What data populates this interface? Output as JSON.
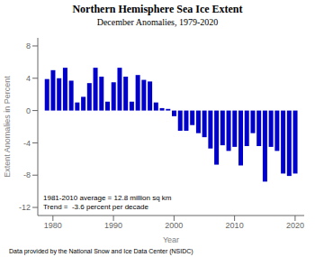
{
  "chart_data": {
    "type": "bar",
    "title": "Northern Hemisphere Sea Ice Extent",
    "subtitle": "December Anomalies, 1979-2020",
    "xlabel": "Year",
    "ylabel": "Extent Anomalies in Percent",
    "annotations": [
      "1981-2010 average = 12.8 million sq km",
      "Trend =  -3.6 percent per decade"
    ],
    "footer": "Data provided by the National Snow and Ice Data Center (NSIDC)",
    "x": [
      1979,
      1980,
      1981,
      1982,
      1983,
      1984,
      1985,
      1986,
      1987,
      1988,
      1989,
      1990,
      1991,
      1992,
      1993,
      1994,
      1995,
      1996,
      1997,
      1998,
      1999,
      2000,
      2001,
      2002,
      2003,
      2004,
      2005,
      2006,
      2007,
      2008,
      2009,
      2010,
      2011,
      2012,
      2013,
      2014,
      2015,
      2016,
      2017,
      2018,
      2019,
      2020
    ],
    "values": [
      3.9,
      5.0,
      4.0,
      5.3,
      3.7,
      1.0,
      1.7,
      3.4,
      5.3,
      4.2,
      1.1,
      3.5,
      5.3,
      4.2,
      1.1,
      4.4,
      3.8,
      3.6,
      1.0,
      0.3,
      0.2,
      -0.7,
      -2.5,
      -2.5,
      -1.8,
      -2.8,
      -3.3,
      -4.7,
      -6.7,
      -4.3,
      -5.0,
      -4.5,
      -6.8,
      -4.4,
      -2.8,
      -4.4,
      -8.8,
      -4.5,
      -5.0,
      -7.8,
      -8.1,
      -7.8
    ],
    "color": "#0000CC",
    "xlim": [
      1977.5,
      2021.5
    ],
    "xticks": [
      1980,
      1990,
      2000,
      2010,
      2020
    ],
    "ylim": [
      -13,
      9
    ],
    "yticks": [
      -12,
      -8,
      -4,
      0,
      4,
      8
    ],
    "grid": false
  }
}
